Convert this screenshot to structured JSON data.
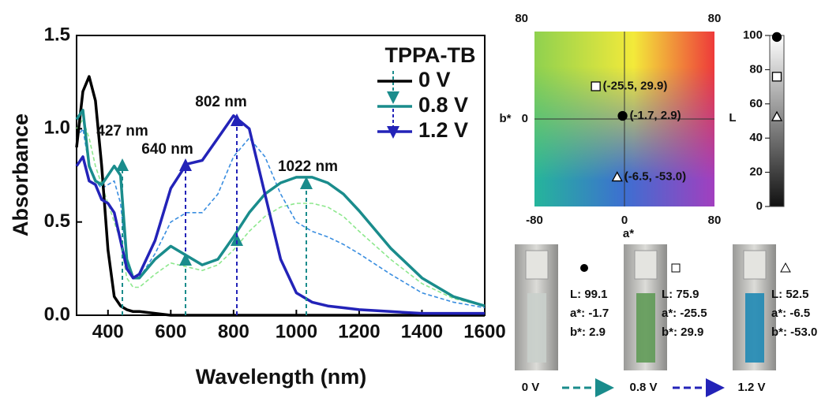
{
  "chart_data": [
    {
      "type": "line",
      "xlabel": "Wavelength (nm)",
      "ylabel": "Absorbance",
      "legend_title": "TPPA-TB",
      "x": [
        300,
        320,
        340,
        360,
        380,
        400,
        420,
        440,
        460,
        480,
        500,
        550,
        600,
        650,
        700,
        750,
        800,
        850,
        900,
        950,
        1000,
        1050,
        1100,
        1150,
        1200,
        1300,
        1400,
        1500,
        1600
      ],
      "series": [
        {
          "name": "0 V",
          "color": "#000000",
          "values": [
            0.9,
            1.2,
            1.28,
            1.15,
            0.8,
            0.35,
            0.1,
            0.05,
            0.03,
            0.02,
            0.02,
            0.01,
            0,
            0,
            0,
            0,
            0,
            0,
            0,
            0,
            0,
            0,
            0,
            0,
            0,
            0,
            0,
            0,
            0
          ]
        },
        {
          "name": "0.8 V",
          "color": "#1a8c8c",
          "values": [
            1.05,
            1.1,
            0.8,
            0.72,
            0.7,
            0.75,
            0.8,
            0.75,
            0.3,
            0.2,
            0.2,
            0.3,
            0.37,
            0.32,
            0.27,
            0.3,
            0.42,
            0.55,
            0.65,
            0.71,
            0.74,
            0.74,
            0.71,
            0.65,
            0.56,
            0.36,
            0.2,
            0.1,
            0.05
          ]
        },
        {
          "name": "1.2 V",
          "color": "#2323b8",
          "values": [
            0.8,
            0.85,
            0.72,
            0.7,
            0.62,
            0.6,
            0.55,
            0.4,
            0.25,
            0.2,
            0.22,
            0.4,
            0.68,
            0.81,
            0.83,
            0.95,
            1.07,
            1.0,
            0.65,
            0.3,
            0.12,
            0.07,
            0.05,
            0.04,
            0.03,
            0.02,
            0.01,
            0.01,
            0.01
          ]
        },
        {
          "color": "#8ee88e",
          "dashed": true,
          "values": [
            1.0,
            1.05,
            0.95,
            0.8,
            0.7,
            0.6,
            0.5,
            0.4,
            0.2,
            0.15,
            0.15,
            0.22,
            0.28,
            0.26,
            0.24,
            0.27,
            0.35,
            0.45,
            0.53,
            0.58,
            0.6,
            0.6,
            0.58,
            0.53,
            0.45,
            0.3,
            0.17,
            0.09,
            0.05
          ]
        },
        {
          "color": "#3a8ee0",
          "dashed": true,
          "values": [
            0.95,
            1.0,
            0.8,
            0.72,
            0.68,
            0.7,
            0.72,
            0.6,
            0.28,
            0.2,
            0.2,
            0.33,
            0.5,
            0.55,
            0.55,
            0.65,
            0.85,
            0.95,
            0.85,
            0.65,
            0.5,
            0.45,
            0.42,
            0.38,
            0.33,
            0.22,
            0.12,
            0.07,
            0.04
          ]
        }
      ],
      "annotations": [
        "427 nm",
        "640 nm",
        "802 nm",
        "1022 nm"
      ],
      "xlim": [
        300,
        1600
      ],
      "xticks": [
        400,
        600,
        800,
        1000,
        1200,
        1400,
        1600
      ],
      "ylim": [
        0,
        1.5
      ],
      "yticks": [
        {
          "value": 0,
          "label": "0.0"
        },
        0.5,
        {
          "value": 1,
          "label": "1.0"
        },
        1.5
      ]
    },
    {
      "type": "scatter",
      "xlabel": "a*",
      "ylabel": "b*",
      "x": [
        -25.5,
        -1.7,
        -6.5
      ],
      "values": [
        29.9,
        2.9,
        -53.0
      ],
      "value_labels": [
        "(-25.5, 29.9)",
        "(-1.7, 2.9)",
        "(-6.5, -53.0)"
      ],
      "markers": [
        "square",
        "circle",
        "triangle"
      ],
      "xlim": [
        -80,
        80
      ],
      "xticks": [
        -80,
        0,
        80
      ],
      "ylim": [
        -80,
        80
      ],
      "yticks": [
        0,
        80
      ]
    },
    {
      "type": "scatter",
      "ylabel": "L",
      "values": [
        99.1,
        75.9,
        52.5
      ],
      "markers": [
        "circle",
        "square",
        "triangle"
      ],
      "ylim": [
        0,
        100
      ],
      "yticks": [
        0,
        20,
        40,
        60,
        80,
        100
      ]
    }
  ],
  "cuvettes": [
    {
      "voltage": "0 V",
      "lines": [
        "L: 99.1",
        "a*: -1.7",
        "b*: 2.9"
      ]
    },
    {
      "voltage": "0.8 V",
      "lines": [
        "L: 75.9",
        "a*: -25.5",
        "b*: 29.9"
      ]
    },
    {
      "voltage": "1.2 V",
      "lines": [
        "L: 52.5",
        "a*: -6.5",
        "b*: -53.0"
      ]
    }
  ]
}
